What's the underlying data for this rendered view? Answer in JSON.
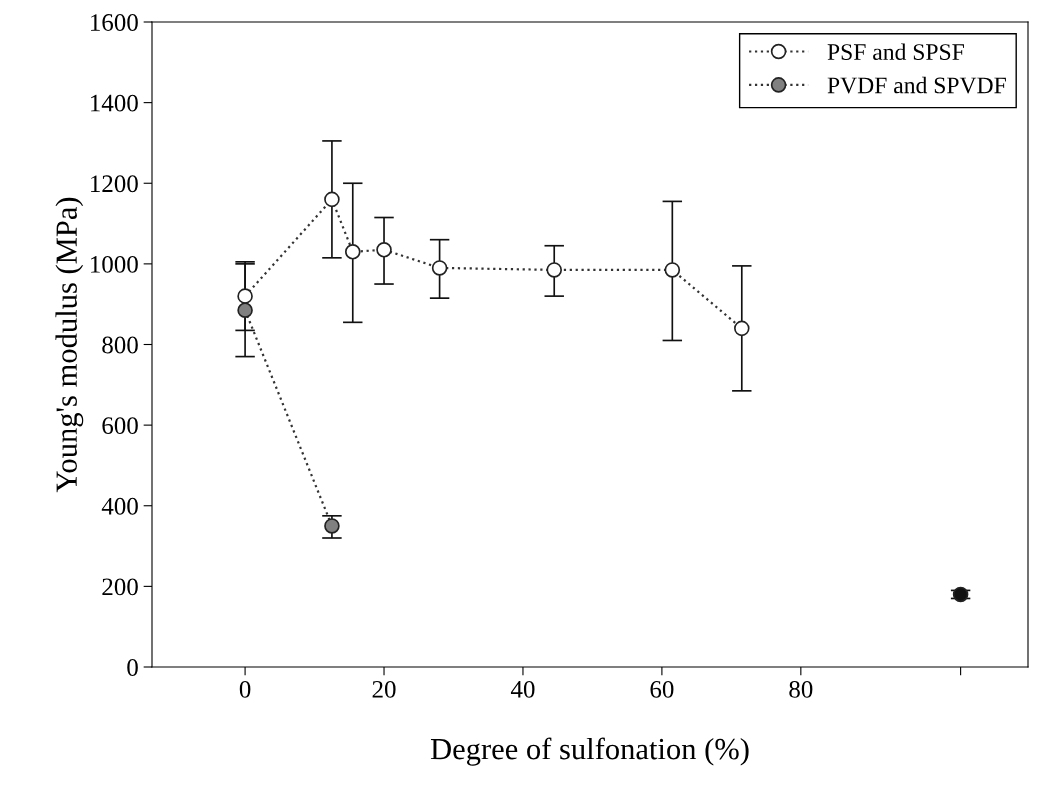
{
  "chart_data": {
    "type": "line",
    "xlabel": "Degree of sulfonation (%)",
    "ylabel": "Young's modulus (MPa)",
    "xlim": [
      -13.4,
      112.7
    ],
    "ylim": [
      0,
      1600
    ],
    "xticks": [
      0,
      20,
      40,
      60,
      80,
      {
        "value": 103,
        "label": null
      }
    ],
    "yticks": [
      0,
      200,
      400,
      600,
      800,
      1000,
      1200,
      1400,
      1600
    ],
    "grid": false,
    "legend": "top right",
    "line_style": "dotted",
    "series": [
      {
        "name": "PSF and SPSF",
        "marker": "circle",
        "color": "#ffffff",
        "x": [
          0,
          12.5,
          15.5,
          20,
          28,
          44.5,
          61.5,
          71.5
        ],
        "values": [
          920,
          1160,
          1030,
          1035,
          990,
          985,
          985,
          840
        ],
        "errors": [
          [
            835,
            1005
          ],
          [
            1015,
            1305
          ],
          [
            855,
            1200
          ],
          [
            950,
            1115
          ],
          [
            915,
            1060
          ],
          [
            920,
            1045
          ],
          [
            810,
            1155
          ],
          [
            685,
            995
          ]
        ]
      },
      {
        "name": "PVDF and SPVDF",
        "marker": "circle",
        "color": "#808080",
        "x": [
          0,
          12.5
        ],
        "values": [
          885,
          350
        ],
        "errors": [
          [
            770,
            1000
          ],
          [
            320,
            375
          ]
        ]
      },
      {
        "type": "scatter",
        "marker": "circle",
        "color": "#111111",
        "x": [
          103
        ],
        "values": [
          180
        ],
        "errors": [
          [
            170,
            190
          ]
        ]
      }
    ]
  }
}
